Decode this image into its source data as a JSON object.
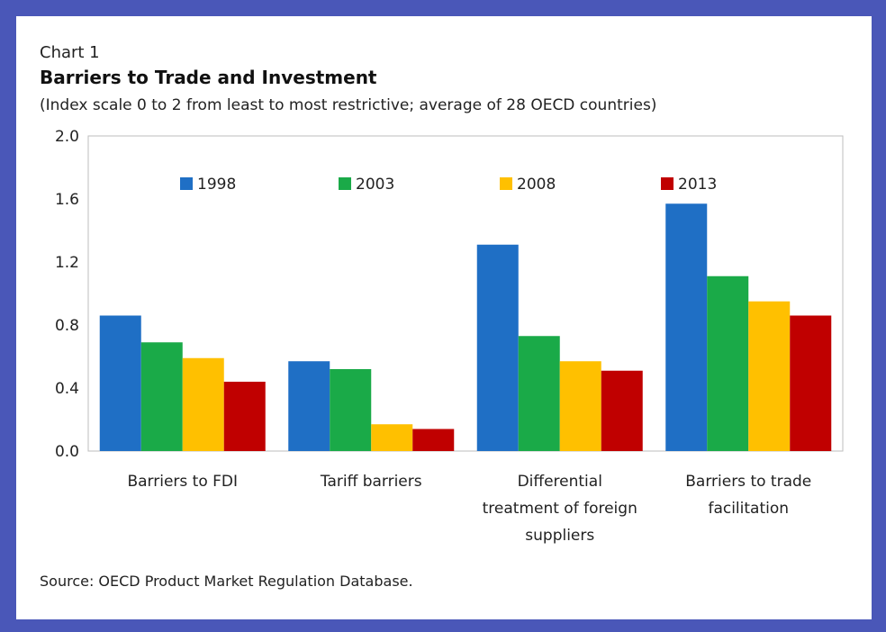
{
  "header": {
    "chart_number": "Chart 1",
    "title": "Barriers to Trade and Investment",
    "subtitle": "(Index scale 0 to 2 from least to most restrictive; average of 28 OECD countries)"
  },
  "footer": {
    "source": "Source: OECD Product Market Regulation Database."
  },
  "chart_data": {
    "type": "bar",
    "title": "Barriers to Trade and Investment",
    "subtitle": "(Index scale 0 to 2 from least to most restrictive; average of 28 OECD countries)",
    "xlabel": "",
    "ylabel": "",
    "categories": [
      [
        "Barriers to FDI"
      ],
      [
        "Tariff barriers"
      ],
      [
        "Differential",
        "treatment of foreign",
        "suppliers"
      ],
      [
        "Barriers to trade",
        "facilitation"
      ]
    ],
    "series": [
      {
        "name": "1998",
        "color": "#1f6fc5",
        "values": [
          0.86,
          0.57,
          1.31,
          1.57
        ]
      },
      {
        "name": "2003",
        "color": "#1aaa48",
        "values": [
          0.69,
          0.52,
          0.73,
          1.11
        ]
      },
      {
        "name": "2008",
        "color": "#ffc000",
        "values": [
          0.59,
          0.17,
          0.57,
          0.95
        ]
      },
      {
        "name": "2013",
        "color": "#c00000",
        "values": [
          0.44,
          0.14,
          0.51,
          0.86
        ]
      }
    ],
    "ylim": [
      0.0,
      2.0
    ],
    "yticks": [
      "0.0",
      "0.4",
      "0.8",
      "1.2",
      "1.6",
      "2.0"
    ],
    "grid": false,
    "legend_position": "top"
  }
}
